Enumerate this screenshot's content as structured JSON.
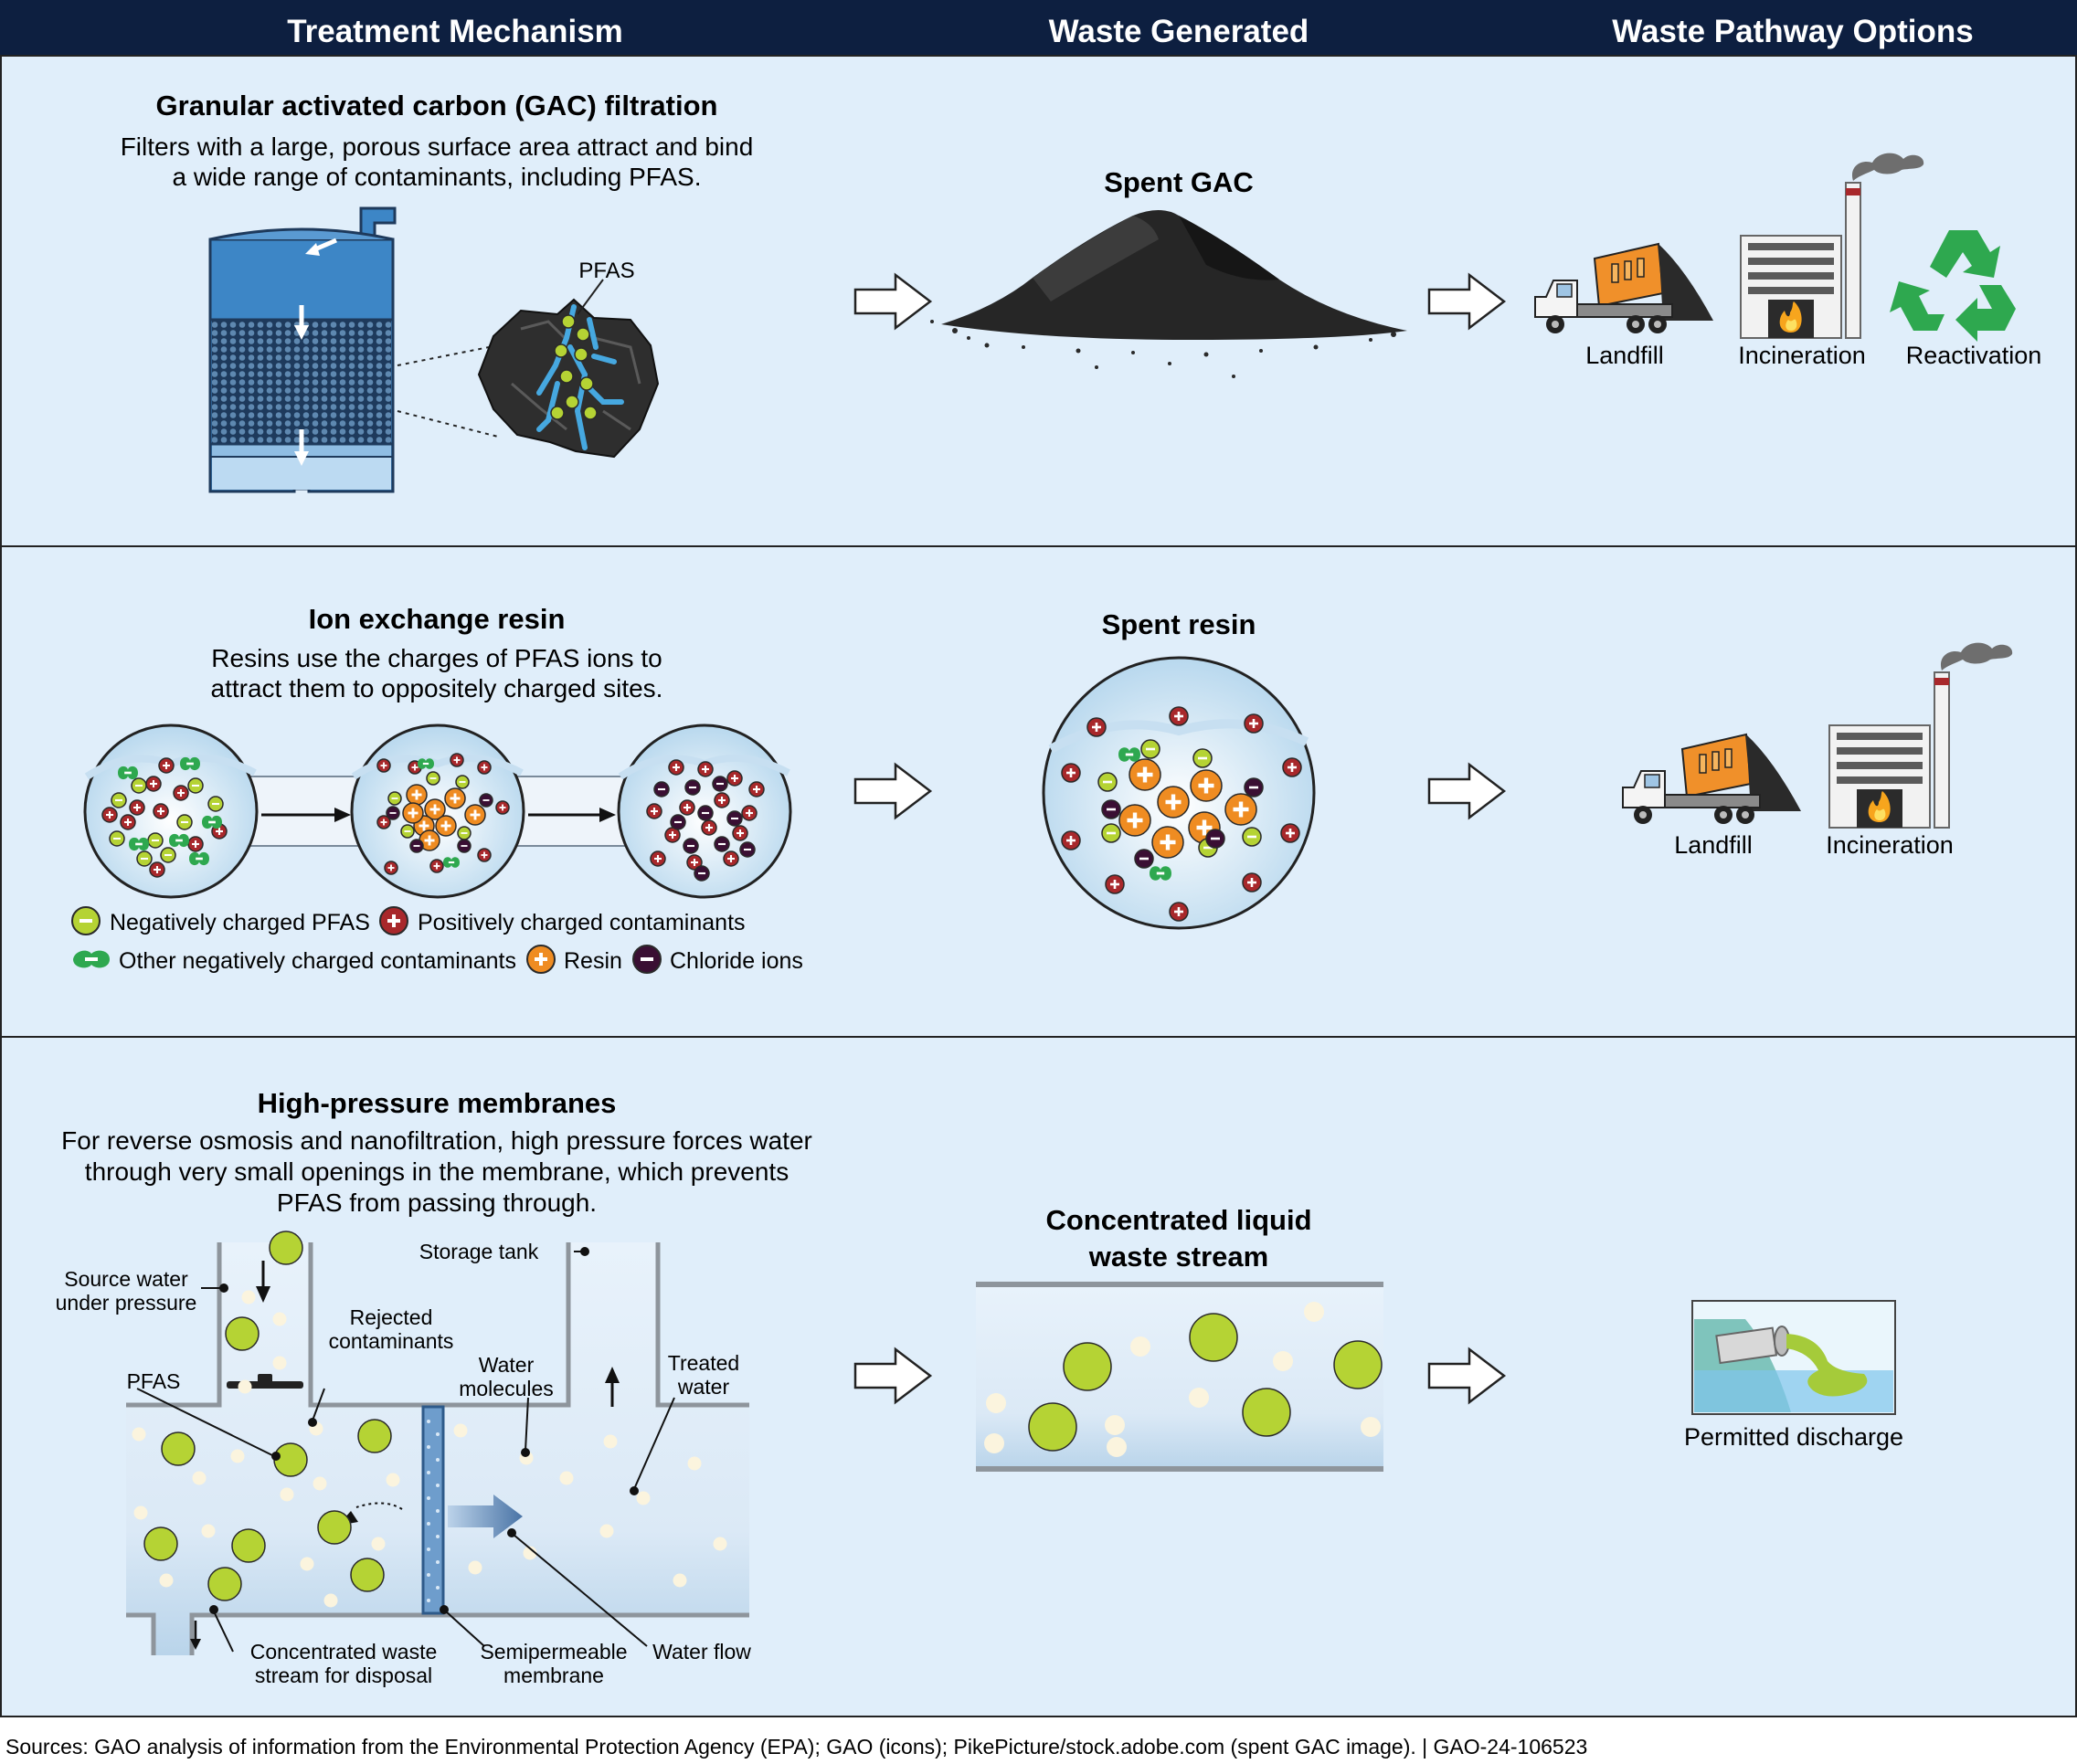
{
  "header": {
    "col1": "Treatment Mechanism",
    "col2": "Waste Generated",
    "col3": "Waste Pathway Options"
  },
  "gac": {
    "title": "Granular activated carbon (GAC) filtration",
    "desc_line1": "Filters with a large, porous surface area attract and bind",
    "desc_line2": "a wide range of contaminants, including PFAS.",
    "pfas_label": "PFAS",
    "waste_title": "Spent GAC",
    "options": [
      "Landfill",
      "Incineration",
      "Reactivation"
    ]
  },
  "ion": {
    "title": "Ion exchange resin",
    "desc_line1": "Resins use the charges of PFAS ions to",
    "desc_line2": "attract them to oppositely charged sites.",
    "waste_title": "Spent resin",
    "legend": {
      "neg_pfas": "Negatively charged PFAS",
      "pos_cont": "Positively charged contaminants",
      "other_neg": "Other negatively charged contaminants",
      "resin": "Resin",
      "chloride": "Chloride ions"
    },
    "options": [
      "Landfill",
      "Incineration"
    ]
  },
  "membrane": {
    "title": "High-pressure membranes",
    "desc_line1": "For reverse osmosis and nanofiltration, high pressure forces water",
    "desc_line2": "through very small openings in the membrane, which prevents",
    "desc_line3": "PFAS from passing through.",
    "labels": {
      "source1": "Source water",
      "source2": "under pressure",
      "rejected1": "Rejected",
      "rejected2": "contaminants",
      "storage": "Storage tank",
      "pfas": "PFAS",
      "water1": "Water",
      "water2": "molecules",
      "treated1": "Treated",
      "treated2": "water",
      "conc1": "Concentrated waste",
      "conc2": "stream for disposal",
      "semi1": "Semipermeable",
      "semi2": "membrane",
      "flow": "Water flow"
    },
    "waste_title1": "Concentrated liquid",
    "waste_title2": "waste stream",
    "option": "Permitted discharge"
  },
  "footer": "Sources: GAO analysis of information from the Environmental Protection Agency (EPA); GAO (icons); PikePicture/stock.adobe.com (spent GAC image).  |  GAO-24-106523",
  "colors": {
    "header_bg": "#0d1f40",
    "panel_bg": "#e0eefa",
    "pfas_green": "#b5d334",
    "pos_red": "#a8282b",
    "resin_orange": "#ef8c22",
    "chloride_purple": "#3a0f33",
    "recycle_green": "#2ea84f"
  },
  "icons": [
    "truck-icon",
    "factory-icon",
    "fire-icon",
    "recycle-icon",
    "arrow-icon",
    "pipe-outfall-icon"
  ]
}
